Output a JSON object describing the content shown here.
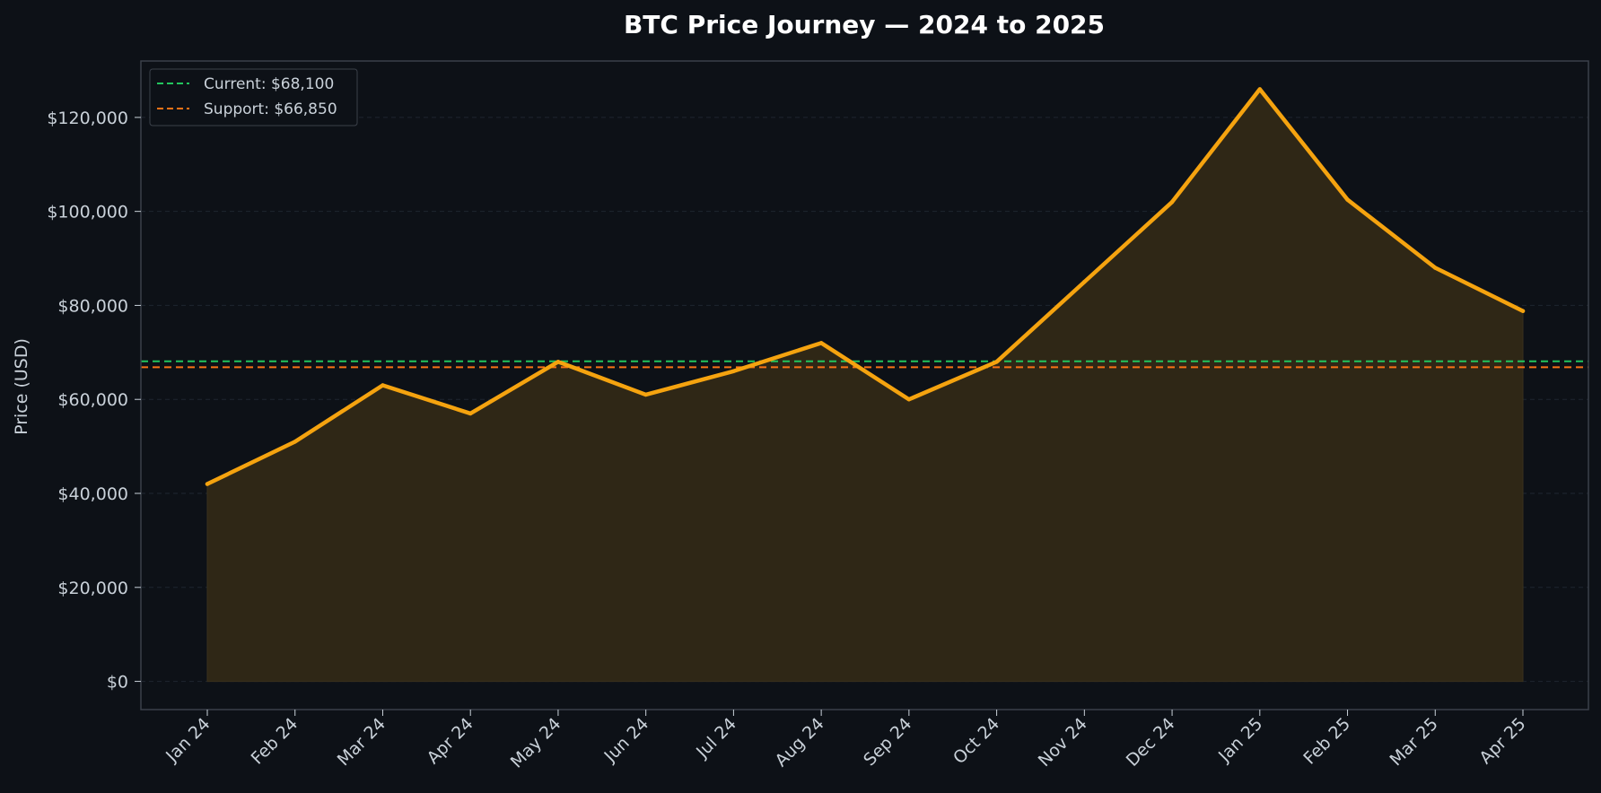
{
  "chart_data": {
    "type": "area",
    "title": "BTC Price Journey — 2024 to 2025",
    "xlabel": "",
    "ylabel": "Price (USD)",
    "categories": [
      "Jan 24",
      "Feb 24",
      "Mar 24",
      "Apr 24",
      "May 24",
      "Jun 24",
      "Jul 24",
      "Aug 24",
      "Sep 24",
      "Oct 24",
      "Nov 24",
      "Dec 24",
      "Jan 25",
      "Feb 25",
      "Mar 25",
      "Apr 25"
    ],
    "values": [
      42000,
      51000,
      63000,
      57000,
      68000,
      61000,
      66000,
      72000,
      60000,
      68000,
      85000,
      102000,
      126000,
      102500,
      88000,
      78800
    ],
    "ylim": [
      -6000,
      132000
    ],
    "yticks": [
      0,
      20000,
      40000,
      60000,
      80000,
      100000,
      120000
    ],
    "ytick_labels": [
      "$0",
      "$20,000",
      "$40,000",
      "$60,000",
      "$80,000",
      "$100,000",
      "$120,000"
    ],
    "reference_lines": [
      {
        "label": "Current: $68,100",
        "value": 68100,
        "color": "#22c55e"
      },
      {
        "label": "Support: $66,850",
        "value": 66850,
        "color": "#f97316"
      }
    ],
    "legend_position": "top-left",
    "grid": true,
    "colors": {
      "line": "#f5a30f",
      "fill": "#2f2716",
      "background": "#0d1117",
      "grid": "#1f2630",
      "frame": "#3b414a",
      "text": "#c9d1d9"
    }
  }
}
